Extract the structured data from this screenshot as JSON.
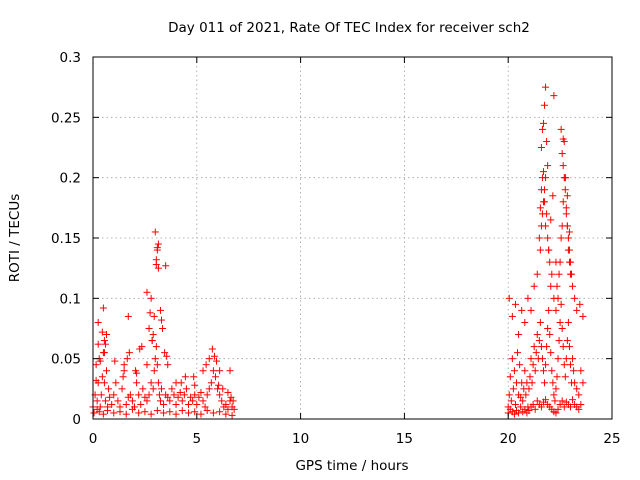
{
  "chart_data": {
    "type": "scatter",
    "title": "Day 011 of 2021, Rate Of TEC Index for receiver sch2",
    "xlabel": "GPS time / hours",
    "ylabel": "ROTI / TECUs",
    "xlim": [
      0,
      25
    ],
    "ylim": [
      0,
      0.3
    ],
    "x_ticks": [
      0,
      5,
      10,
      15,
      20,
      25
    ],
    "y_ticks": [
      0,
      0.05,
      0.1,
      0.15,
      0.2,
      0.25,
      0.3
    ],
    "x_tick_labels": [
      "0",
      "5",
      "10",
      "15",
      "20",
      "25"
    ],
    "y_tick_labels": [
      "0",
      "0.05",
      "0.1",
      "0.15",
      "0.2",
      "0.25",
      "0.3"
    ],
    "grid": true,
    "marker": "plus",
    "marker_color": "#ff0000",
    "series": [
      {
        "x": [
          0.0,
          0.1,
          0.15,
          0.2,
          0.25,
          0.3,
          0.35,
          0.4,
          0.45,
          0.5,
          0.55,
          0.6,
          0.65,
          0.7,
          0.75,
          0.8,
          0.9,
          1.0,
          1.1,
          1.2,
          1.3,
          1.4,
          1.5,
          1.6,
          1.7,
          1.8,
          1.9,
          2.0,
          2.1,
          2.2,
          2.3,
          2.4,
          2.5,
          2.6,
          2.7,
          2.8,
          2.9,
          2.95,
          3.0,
          3.05,
          3.1,
          3.15,
          3.2,
          3.25,
          3.3,
          3.4,
          3.5,
          3.6,
          3.7,
          3.8,
          3.9,
          4.0,
          4.1,
          4.2,
          4.3,
          4.4,
          4.5,
          4.6,
          4.7,
          4.8,
          4.9,
          5.0,
          5.1,
          5.2,
          5.3,
          5.4,
          5.5,
          5.6,
          5.7,
          5.8,
          5.9,
          6.0,
          6.1,
          6.2,
          6.3,
          6.4,
          6.5,
          6.6,
          6.7,
          6.8,
          0.05,
          0.2,
          0.3,
          0.5,
          0.7,
          1.0,
          1.3,
          1.6,
          1.9,
          2.2,
          2.5,
          2.8,
          3.1,
          3.4,
          3.7,
          4.0,
          4.3,
          4.6,
          4.9,
          5.2,
          5.5,
          5.8,
          6.1,
          6.4,
          6.7,
          0.15,
          0.35,
          0.55,
          0.6,
          0.65,
          1.45,
          1.75,
          2.05,
          2.35,
          2.6,
          2.7,
          2.75,
          2.8,
          2.85,
          2.9,
          2.95,
          3.05,
          3.1,
          3.15,
          3.25,
          3.3,
          3.35,
          3.45,
          3.6,
          4.0,
          4.45,
          4.9,
          5.3,
          5.6,
          5.75,
          5.85,
          5.95,
          6.1,
          6.25,
          6.5,
          6.65,
          6.75,
          0.25,
          0.45,
          1.05,
          1.65,
          2.25,
          2.85,
          3.55,
          4.25,
          4.85,
          5.45,
          6.05,
          6.6,
          0.5,
          3.0,
          3.1,
          3.05,
          3.15,
          3.5,
          2.6,
          1.7,
          0.25,
          0.55,
          1.5,
          2.1
        ],
        "y": [
          0.01,
          0.02,
          0.045,
          0.015,
          0.03,
          0.05,
          0.01,
          0.02,
          0.035,
          0.055,
          0.065,
          0.015,
          0.04,
          0.01,
          0.025,
          0.018,
          0.012,
          0.02,
          0.03,
          0.015,
          0.01,
          0.025,
          0.04,
          0.012,
          0.018,
          0.02,
          0.015,
          0.01,
          0.03,
          0.02,
          0.012,
          0.025,
          0.018,
          0.015,
          0.02,
          0.03,
          0.025,
          0.04,
          0.05,
          0.06,
          0.045,
          0.03,
          0.02,
          0.015,
          0.025,
          0.012,
          0.02,
          0.018,
          0.015,
          0.025,
          0.02,
          0.012,
          0.018,
          0.022,
          0.015,
          0.02,
          0.025,
          0.012,
          0.018,
          0.015,
          0.02,
          0.012,
          0.018,
          0.022,
          0.015,
          0.01,
          0.02,
          0.025,
          0.03,
          0.04,
          0.035,
          0.025,
          0.02,
          0.015,
          0.01,
          0.012,
          0.008,
          0.015,
          0.01,
          0.008,
          0.005,
          0.008,
          0.006,
          0.004,
          0.007,
          0.005,
          0.006,
          0.004,
          0.008,
          0.005,
          0.006,
          0.004,
          0.007,
          0.005,
          0.006,
          0.004,
          0.007,
          0.005,
          0.006,
          0.004,
          0.007,
          0.005,
          0.006,
          0.004,
          0.003,
          0.032,
          0.048,
          0.055,
          0.062,
          0.07,
          0.035,
          0.055,
          0.04,
          0.06,
          0.045,
          0.075,
          0.088,
          0.1,
          0.065,
          0.07,
          0.085,
          0.132,
          0.142,
          0.125,
          0.09,
          0.082,
          0.075,
          0.055,
          0.045,
          0.03,
          0.035,
          0.028,
          0.04,
          0.05,
          0.058,
          0.052,
          0.048,
          0.04,
          0.025,
          0.022,
          0.018,
          0.015,
          0.062,
          0.072,
          0.048,
          0.05,
          0.058,
          0.065,
          0.052,
          0.03,
          0.035,
          0.045,
          0.028,
          0.04,
          0.092,
          0.155,
          0.14,
          0.128,
          0.145,
          0.127,
          0.105,
          0.085,
          0.08,
          0.03,
          0.045,
          0.038
        ]
      },
      {
        "x": [
          20.0,
          20.05,
          20.1,
          20.15,
          20.2,
          20.25,
          20.3,
          20.35,
          20.4,
          20.45,
          20.5,
          20.55,
          20.6,
          20.65,
          20.7,
          20.75,
          20.8,
          20.85,
          20.9,
          20.95,
          21.0,
          21.05,
          21.1,
          21.15,
          21.2,
          21.25,
          21.3,
          21.35,
          21.4,
          21.45,
          21.5,
          21.55,
          21.6,
          21.65,
          21.7,
          21.75,
          21.8,
          21.85,
          21.9,
          21.95,
          22.0,
          22.05,
          22.1,
          22.15,
          22.2,
          22.25,
          22.3,
          22.35,
          22.4,
          22.45,
          22.5,
          22.55,
          22.6,
          22.65,
          22.7,
          22.75,
          22.8,
          22.85,
          22.9,
          22.95,
          23.0,
          23.05,
          23.1,
          23.15,
          23.2,
          23.3,
          23.4,
          23.5,
          23.6,
          20.0,
          20.1,
          20.2,
          20.3,
          20.4,
          20.5,
          20.6,
          20.7,
          20.8,
          20.9,
          21.0,
          21.1,
          21.2,
          21.3,
          21.4,
          21.5,
          21.6,
          21.7,
          21.8,
          21.9,
          22.0,
          22.1,
          22.2,
          22.3,
          22.4,
          22.5,
          22.6,
          22.7,
          22.8,
          22.9,
          23.0,
          23.1,
          23.2,
          23.3,
          23.4,
          23.5,
          20.05,
          20.2,
          20.35,
          20.5,
          20.65,
          20.8,
          20.95,
          21.1,
          21.25,
          21.4,
          21.55,
          21.6,
          21.65,
          21.7,
          21.75,
          21.8,
          21.85,
          21.9,
          21.95,
          22.0,
          22.05,
          22.1,
          22.2,
          22.3,
          22.4,
          22.45,
          22.5,
          22.55,
          22.6,
          22.65,
          22.7,
          22.75,
          22.8,
          22.85,
          22.9,
          22.95,
          23.0,
          23.1,
          23.2,
          23.3,
          23.45,
          23.6,
          21.6,
          21.65,
          21.7,
          21.75,
          21.8,
          21.85,
          21.9,
          22.05,
          22.15,
          22.3,
          22.6,
          22.65,
          22.7,
          22.75,
          22.8,
          22.85,
          22.9,
          22.95,
          23.0,
          23.05,
          21.5,
          21.55,
          21.6,
          21.65,
          21.7,
          21.75,
          21.8,
          21.95,
          22.2,
          22.35,
          22.55,
          22.65,
          22.75,
          22.85,
          22.95
        ],
        "y": [
          0.01,
          0.02,
          0.035,
          0.015,
          0.05,
          0.025,
          0.04,
          0.012,
          0.03,
          0.055,
          0.02,
          0.045,
          0.018,
          0.03,
          0.015,
          0.025,
          0.04,
          0.02,
          0.03,
          0.01,
          0.025,
          0.035,
          0.05,
          0.03,
          0.045,
          0.06,
          0.04,
          0.055,
          0.07,
          0.05,
          0.065,
          0.08,
          0.06,
          0.05,
          0.04,
          0.03,
          0.045,
          0.06,
          0.075,
          0.09,
          0.07,
          0.055,
          0.04,
          0.03,
          0.02,
          0.015,
          0.025,
          0.035,
          0.05,
          0.065,
          0.08,
          0.095,
          0.075,
          0.06,
          0.045,
          0.035,
          0.05,
          0.065,
          0.08,
          0.06,
          0.045,
          0.03,
          0.05,
          0.04,
          0.03,
          0.025,
          0.02,
          0.04,
          0.03,
          0.005,
          0.008,
          0.006,
          0.004,
          0.007,
          0.005,
          0.01,
          0.006,
          0.008,
          0.005,
          0.007,
          0.01,
          0.012,
          0.008,
          0.015,
          0.012,
          0.01,
          0.014,
          0.016,
          0.012,
          0.01,
          0.008,
          0.006,
          0.005,
          0.008,
          0.012,
          0.015,
          0.01,
          0.014,
          0.012,
          0.01,
          0.016,
          0.012,
          0.01,
          0.008,
          0.012,
          0.1,
          0.085,
          0.095,
          0.07,
          0.09,
          0.08,
          0.1,
          0.09,
          0.11,
          0.12,
          0.14,
          0.16,
          0.17,
          0.18,
          0.19,
          0.2,
          0.17,
          0.15,
          0.14,
          0.13,
          0.11,
          0.12,
          0.1,
          0.09,
          0.1,
          0.12,
          0.13,
          0.15,
          0.16,
          0.18,
          0.2,
          0.19,
          0.17,
          0.16,
          0.14,
          0.13,
          0.12,
          0.11,
          0.1,
          0.09,
          0.095,
          0.085,
          0.225,
          0.24,
          0.245,
          0.26,
          0.275,
          0.23,
          0.21,
          0.165,
          0.185,
          0.13,
          0.22,
          0.21,
          0.23,
          0.2,
          0.175,
          0.16,
          0.15,
          0.14,
          0.13,
          0.12,
          0.15,
          0.175,
          0.19,
          0.2,
          0.205,
          0.18,
          0.16,
          0.14,
          0.268,
          0.11,
          0.24,
          0.232,
          0.2,
          0.185,
          0.155
        ]
      }
    ]
  }
}
